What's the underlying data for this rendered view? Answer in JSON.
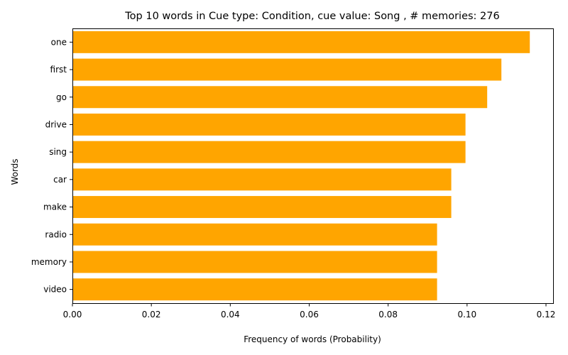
{
  "chart_data": {
    "type": "bar",
    "orientation": "horizontal",
    "title": "Top 10 words in Cue type: Condition, cue value: Song , # memories: 276",
    "xlabel": "Frequency of words (Probability)",
    "ylabel": "Words",
    "categories": [
      "one",
      "first",
      "go",
      "drive",
      "sing",
      "car",
      "make",
      "radio",
      "memory",
      "video"
    ],
    "values": [
      0.1159,
      0.1087,
      0.1051,
      0.0996,
      0.0996,
      0.096,
      0.096,
      0.0924,
      0.0924,
      0.0924
    ],
    "xlim": [
      0,
      0.1218
    ],
    "xticks": [
      "0.00",
      "0.02",
      "0.04",
      "0.06",
      "0.08",
      "0.10",
      "0.12"
    ],
    "bar_color": "#ffa500",
    "grid": false,
    "legend": "none"
  }
}
